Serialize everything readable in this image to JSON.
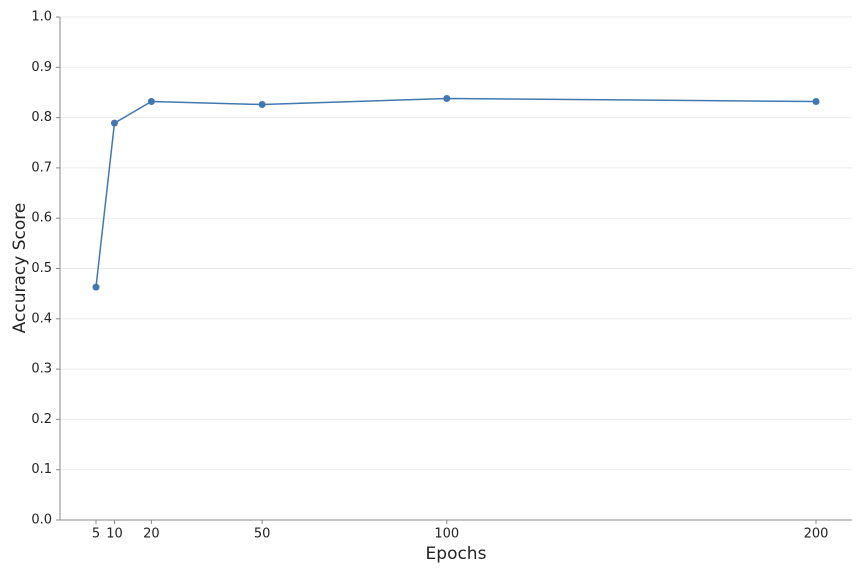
{
  "chart_data": {
    "type": "line",
    "x": [
      5,
      10,
      20,
      50,
      100,
      200
    ],
    "series": [
      {
        "color": "#4178b0",
        "values": [
          0.463,
          0.789,
          0.832,
          0.826,
          0.838,
          0.832
        ]
      }
    ],
    "xlabel": "Epochs",
    "ylabel": "Accuracy Score",
    "xlim": [
      -4.75,
      209.75
    ],
    "xticks": [
      5,
      10,
      20,
      50,
      100,
      200
    ],
    "ylim": [
      0,
      1
    ],
    "yticks": [
      {
        "value": 0,
        "label": "0.0"
      },
      0.1,
      0.2,
      0.3,
      0.4,
      0.5,
      0.6,
      0.7,
      0.8,
      0.9,
      {
        "value": 1,
        "label": "1.0"
      }
    ],
    "grid": true
  }
}
